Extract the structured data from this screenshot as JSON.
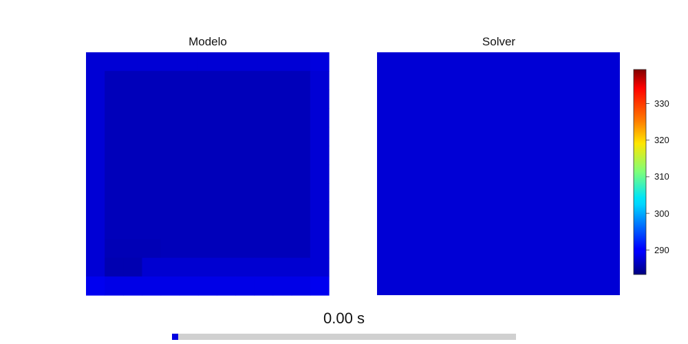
{
  "chart_data": {
    "type": "heatmap",
    "panels": [
      {
        "title": "Modelo",
        "grid": [
          [
            288.0,
            288.0,
            288.0,
            288.0,
            288.0,
            288.0,
            288.0,
            288.0,
            288.0,
            288.0,
            288.0,
            288.0,
            288.5
          ],
          [
            288.0,
            286.5,
            286.5,
            286.5,
            286.5,
            286.5,
            286.5,
            286.5,
            286.5,
            286.5,
            286.5,
            286.5,
            288.0
          ],
          [
            288.0,
            286.5,
            286.5,
            286.5,
            286.5,
            286.5,
            286.5,
            286.5,
            286.5,
            286.5,
            286.5,
            286.5,
            288.0
          ],
          [
            288.0,
            286.5,
            286.5,
            286.5,
            286.5,
            286.5,
            286.5,
            286.5,
            286.5,
            286.5,
            286.5,
            286.5,
            288.0
          ],
          [
            288.0,
            286.5,
            286.5,
            286.5,
            286.5,
            286.5,
            286.5,
            286.5,
            286.5,
            286.5,
            286.5,
            286.5,
            288.0
          ],
          [
            288.0,
            286.5,
            286.5,
            286.5,
            286.5,
            286.5,
            286.5,
            286.5,
            286.5,
            286.5,
            286.5,
            286.5,
            288.0
          ],
          [
            288.0,
            286.5,
            286.5,
            286.5,
            286.5,
            286.5,
            286.5,
            286.5,
            286.5,
            286.5,
            286.5,
            286.5,
            288.0
          ],
          [
            288.0,
            286.5,
            286.5,
            286.5,
            286.5,
            286.5,
            286.5,
            286.5,
            286.5,
            286.5,
            286.5,
            286.5,
            288.0
          ],
          [
            288.0,
            286.5,
            286.5,
            286.5,
            286.5,
            286.5,
            286.5,
            286.5,
            286.5,
            286.5,
            286.5,
            286.5,
            288.0
          ],
          [
            288.0,
            286.5,
            286.5,
            286.5,
            286.5,
            286.5,
            286.5,
            286.5,
            286.5,
            286.5,
            286.5,
            286.5,
            288.0
          ],
          [
            288.0,
            286.3,
            286.3,
            286.3,
            286.5,
            286.5,
            286.5,
            286.5,
            286.5,
            286.5,
            286.5,
            286.5,
            288.0
          ],
          [
            288.0,
            286.0,
            286.0,
            287.8,
            287.8,
            287.8,
            287.8,
            287.8,
            287.8,
            287.8,
            287.8,
            287.8,
            288.0
          ],
          [
            289.5,
            289.0,
            289.0,
            289.0,
            289.0,
            289.0,
            289.0,
            289.0,
            289.0,
            289.0,
            289.0,
            289.0,
            289.5
          ]
        ]
      },
      {
        "title": "Solver",
        "uniform_value": 288.0
      }
    ],
    "colorbar": {
      "colormap": "jet",
      "vmin": 283.3,
      "vmax": 339.3,
      "ticks": [
        290,
        300,
        310,
        320,
        330
      ],
      "tick_labels": [
        "290",
        "300",
        "310",
        "320",
        "330"
      ]
    }
  },
  "time_label": "0.00 s",
  "time_slider": {
    "progress": 0.018,
    "fill_color": "#0000e0"
  }
}
